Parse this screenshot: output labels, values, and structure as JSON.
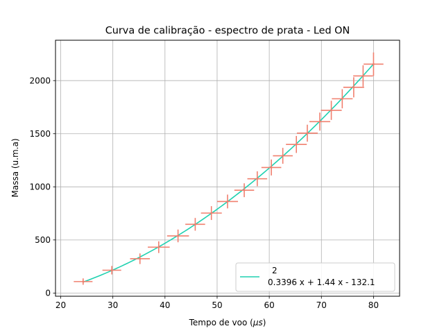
{
  "chart_data": {
    "type": "scatter",
    "title": "Curva de calibração - espectro de prata - Led ON",
    "xlabel_prefix": "Tempo de voo (",
    "xlabel_unit": "μs",
    "xlabel_suffix": ")",
    "ylabel": "Massa (u.m.a)",
    "xlim": [
      19,
      85
    ],
    "ylim": [
      -30,
      2380
    ],
    "xticks": [
      20,
      30,
      40,
      50,
      60,
      70,
      80
    ],
    "yticks": [
      0,
      500,
      1000,
      1500,
      2000
    ],
    "grid": true,
    "legend_placement": "lower-right",
    "legend_label_exponent": "2",
    "legend_label": "0.3396 x + 1.44 x - 132.1",
    "fit": {
      "a": 0.3396,
      "b": 1.44,
      "c": -132.1,
      "x_range": [
        24.3,
        80
      ],
      "color": "#1fd1b0"
    },
    "points_color": "#f07f6e",
    "points": [
      {
        "x": 24.3,
        "y": 108,
        "xerr": 1.8,
        "yerr": 30
      },
      {
        "x": 29.8,
        "y": 215,
        "xerr": 1.8,
        "yerr": 40
      },
      {
        "x": 35.2,
        "y": 323,
        "xerr": 1.9,
        "yerr": 50
      },
      {
        "x": 38.8,
        "y": 432,
        "xerr": 2.1,
        "yerr": 55
      },
      {
        "x": 42.5,
        "y": 538,
        "xerr": 2.1,
        "yerr": 60
      },
      {
        "x": 45.8,
        "y": 647,
        "xerr": 1.9,
        "yerr": 60
      },
      {
        "x": 48.9,
        "y": 753,
        "xerr": 2.0,
        "yerr": 65
      },
      {
        "x": 52.0,
        "y": 862,
        "xerr": 2.0,
        "yerr": 65
      },
      {
        "x": 55.2,
        "y": 968,
        "xerr": 1.9,
        "yerr": 65
      },
      {
        "x": 57.7,
        "y": 1076,
        "xerr": 1.9,
        "yerr": 70
      },
      {
        "x": 60.4,
        "y": 1182,
        "xerr": 1.9,
        "yerr": 75
      },
      {
        "x": 62.6,
        "y": 1292,
        "xerr": 1.9,
        "yerr": 75
      },
      {
        "x": 65.2,
        "y": 1399,
        "xerr": 2.0,
        "yerr": 80
      },
      {
        "x": 67.3,
        "y": 1505,
        "xerr": 2.0,
        "yerr": 80
      },
      {
        "x": 69.7,
        "y": 1614,
        "xerr": 2.0,
        "yerr": 85
      },
      {
        "x": 71.9,
        "y": 1720,
        "xerr": 2.0,
        "yerr": 90
      },
      {
        "x": 74.0,
        "y": 1829,
        "xerr": 2.0,
        "yerr": 90
      },
      {
        "x": 76.2,
        "y": 1937,
        "xerr": 2.0,
        "yerr": 95
      },
      {
        "x": 78.0,
        "y": 2044,
        "xerr": 1.9,
        "yerr": 100
      },
      {
        "x": 80.0,
        "y": 2155,
        "xerr": 1.9,
        "yerr": 110
      }
    ]
  }
}
